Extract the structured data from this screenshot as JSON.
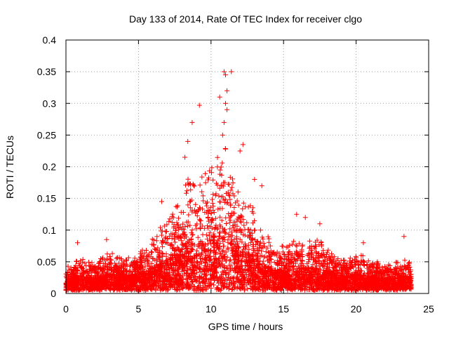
{
  "chart_data": {
    "type": "scatter",
    "title": "Day 133 of 2014, Rate Of TEC Index for receiver clgo",
    "xlabel": "GPS time / hours",
    "ylabel": "ROTI / TECUs",
    "xlim": [
      0,
      25
    ],
    "ylim": [
      0,
      0.4
    ],
    "xticks": [
      0,
      5,
      10,
      15,
      20,
      25
    ],
    "yticks": [
      0,
      0.05,
      0.1,
      0.15,
      0.2,
      0.25,
      0.3,
      0.35,
      0.4
    ],
    "xtick_labels": [
      "0",
      "5",
      "10",
      "15",
      "20",
      "25"
    ],
    "ytick_labels": [
      "0",
      "0.05",
      "0.1",
      "0.15",
      "0.2",
      "0.25",
      "0.3",
      "0.35",
      "0.4"
    ],
    "grid": true,
    "marker": "+",
    "marker_color": "#ff0000",
    "x_range_data": [
      0,
      23.8
    ],
    "envelope": {
      "hours": [
        0,
        1,
        2,
        3,
        4,
        5,
        6,
        7,
        8,
        8.5,
        9,
        9.5,
        10,
        10.5,
        11,
        11.5,
        12,
        13,
        14,
        15,
        16,
        17,
        18,
        19,
        20,
        21,
        22,
        23,
        23.8
      ],
      "typical_max": [
        0.04,
        0.05,
        0.045,
        0.06,
        0.05,
        0.06,
        0.08,
        0.11,
        0.15,
        0.18,
        0.16,
        0.17,
        0.18,
        0.2,
        0.22,
        0.17,
        0.15,
        0.12,
        0.08,
        0.07,
        0.08,
        0.08,
        0.07,
        0.05,
        0.06,
        0.05,
        0.04,
        0.05,
        0.05
      ]
    },
    "notable_points": [
      {
        "x": 9.2,
        "y": 0.297
      },
      {
        "x": 8.7,
        "y": 0.27
      },
      {
        "x": 10.6,
        "y": 0.31
      },
      {
        "x": 10.9,
        "y": 0.35
      },
      {
        "x": 11.0,
        "y": 0.345
      },
      {
        "x": 11.4,
        "y": 0.35
      },
      {
        "x": 11.1,
        "y": 0.32
      },
      {
        "x": 11.0,
        "y": 0.3
      },
      {
        "x": 11.1,
        "y": 0.29
      },
      {
        "x": 10.9,
        "y": 0.27
      },
      {
        "x": 10.8,
        "y": 0.25
      },
      {
        "x": 8.4,
        "y": 0.24
      },
      {
        "x": 12.2,
        "y": 0.235
      },
      {
        "x": 12.0,
        "y": 0.225
      },
      {
        "x": 8.2,
        "y": 0.215
      },
      {
        "x": 13.0,
        "y": 0.18
      },
      {
        "x": 13.5,
        "y": 0.17
      },
      {
        "x": 6.6,
        "y": 0.145
      },
      {
        "x": 16.5,
        "y": 0.12
      },
      {
        "x": 15.9,
        "y": 0.125
      },
      {
        "x": 17.5,
        "y": 0.11
      },
      {
        "x": 20.5,
        "y": 0.08
      },
      {
        "x": 23.3,
        "y": 0.09
      },
      {
        "x": 2.8,
        "y": 0.085
      },
      {
        "x": 0.8,
        "y": 0.08
      }
    ]
  }
}
